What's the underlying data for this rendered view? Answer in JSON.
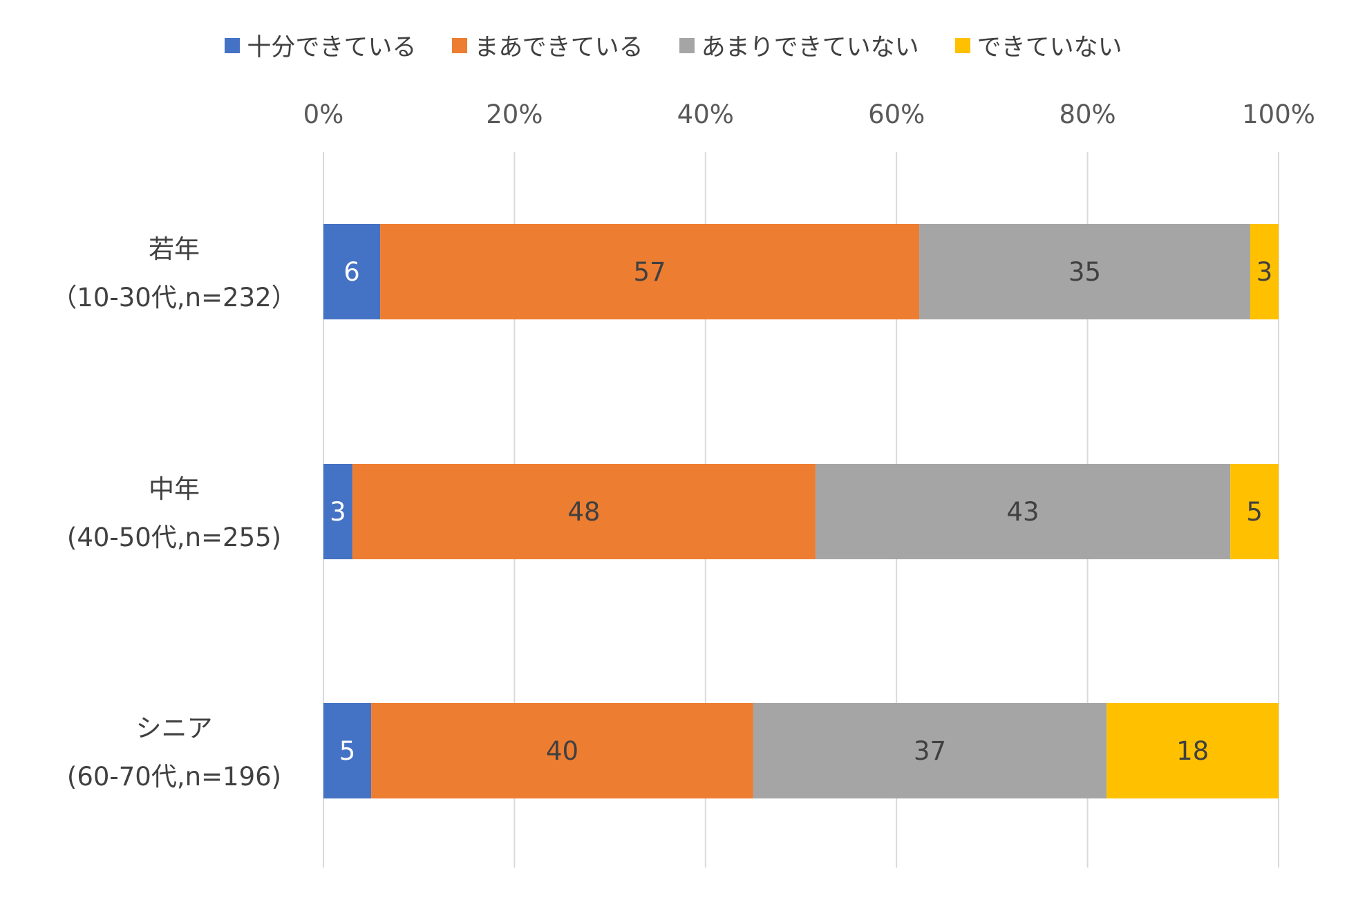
{
  "chart_data": {
    "type": "bar",
    "orientation": "horizontal",
    "stacked": true,
    "percent": true,
    "categories": [
      [
        "若年",
        "（10-30代,n=232）"
      ],
      [
        "中年",
        "(40-50代,n=255)"
      ],
      [
        "シニア",
        "(60-70代,n=196)"
      ]
    ],
    "series": [
      {
        "name": "十分できている",
        "color": "#4472C4",
        "values": [
          6,
          3,
          5
        ]
      },
      {
        "name": "まあできている",
        "color": "#ED7D31",
        "values": [
          57,
          48,
          40
        ]
      },
      {
        "name": "あまりできていない",
        "color": "#A5A5A5",
        "values": [
          35,
          43,
          37
        ]
      },
      {
        "name": "できていない",
        "color": "#FFC000",
        "values": [
          3,
          5,
          18
        ]
      }
    ],
    "xlim": [
      0,
      100
    ],
    "x_ticks": [
      "0%",
      "20%",
      "40%",
      "60%",
      "80%",
      "100%"
    ],
    "x_axis_position": "top",
    "grid": true,
    "legend": "top",
    "data_labels": true
  }
}
